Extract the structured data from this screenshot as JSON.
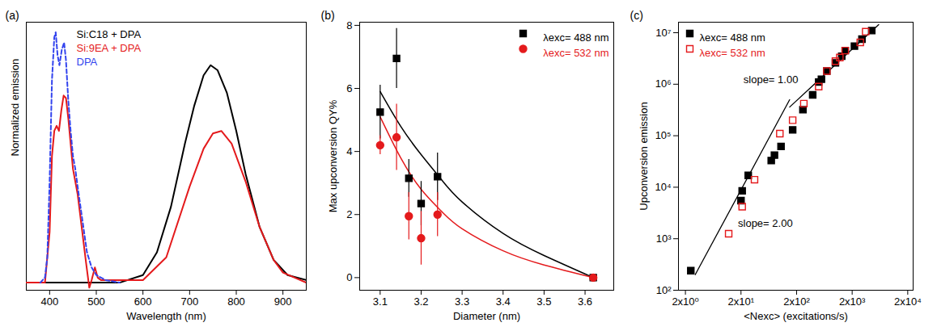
{
  "chart_data": [
    {
      "type": "line",
      "title": "(a)",
      "x_label": "Wavelength (nm)",
      "y_label": "Normalized emission",
      "xlim": [
        350,
        950
      ],
      "xticks": [
        400,
        500,
        600,
        700,
        800,
        900
      ],
      "ylim": [
        -0.03,
        1.03
      ],
      "yticks": [],
      "tick_labels": "x",
      "legend": "top-left",
      "series": [
        {
          "name": "Si:C18 + DPA",
          "color": "#000000",
          "line_style": "solid",
          "x": [
            350,
            400,
            450,
            500,
            550,
            600,
            630,
            660,
            690,
            710,
            730,
            745,
            760,
            780,
            800,
            820,
            850,
            880,
            910,
            950
          ],
          "values": [
            0,
            0,
            0,
            0,
            0,
            0.03,
            0.12,
            0.3,
            0.55,
            0.7,
            0.82,
            0.86,
            0.84,
            0.75,
            0.6,
            0.43,
            0.22,
            0.09,
            0.03,
            0.01
          ]
        },
        {
          "name": "Si:9EA + DPA",
          "color": "#e41a1c",
          "line_style": "solid",
          "x": [
            350,
            390,
            400,
            405,
            410,
            415,
            420,
            425,
            430,
            435,
            440,
            445,
            450,
            460,
            470,
            478,
            485,
            490,
            497,
            503,
            510,
            550,
            600,
            650,
            700,
            730,
            750,
            768,
            790,
            820,
            850,
            880,
            900,
            950
          ],
          "values": [
            0,
            0,
            0.2,
            0.5,
            0.6,
            0.62,
            0.6,
            0.68,
            0.74,
            0.73,
            0.65,
            0.55,
            0.45,
            0.35,
            0.2,
            0.08,
            -0.02,
            0.01,
            0.06,
            0.02,
            0.01,
            0.01,
            0.01,
            0.1,
            0.38,
            0.53,
            0.59,
            0.6,
            0.55,
            0.4,
            0.22,
            0.09,
            0.04,
            0
          ]
        },
        {
          "name": "DPA",
          "color": "#3344ee",
          "line_style": "dashed",
          "x": [
            380,
            390,
            395,
            400,
            405,
            410,
            413,
            417,
            421,
            426,
            431,
            435,
            440,
            445,
            450,
            455,
            460,
            470,
            480,
            490,
            500,
            520,
            550
          ],
          "values": [
            0,
            0.02,
            0.1,
            0.4,
            0.8,
            0.97,
            0.99,
            0.9,
            0.86,
            0.92,
            0.95,
            0.88,
            0.72,
            0.6,
            0.5,
            0.45,
            0.38,
            0.25,
            0.12,
            0.06,
            0.03,
            0.01,
            0
          ]
        }
      ]
    },
    {
      "type": "scatter",
      "title": "(b)",
      "x_label": "Diameter (nm)",
      "y_label": "Max upconversion QY%",
      "xlim": [
        3.05,
        3.67
      ],
      "xticks": [
        3.1,
        3.2,
        3.3,
        3.4,
        3.5,
        3.6
      ],
      "ylim": [
        -0.4,
        8.1
      ],
      "yticks": [
        0,
        2,
        4,
        6,
        8
      ],
      "legend": "top-right",
      "series": [
        {
          "name": "λexc= 488 nm",
          "color": "#000000",
          "marker": "square",
          "x": [
            3.1,
            3.14,
            3.17,
            3.2,
            3.24,
            3.62
          ],
          "values": [
            5.25,
            6.95,
            3.15,
            2.35,
            3.2,
            0
          ],
          "errors": [
            0.85,
            0.95,
            0.6,
            0.7,
            0.75,
            0
          ],
          "fit": {
            "x": [
              3.1,
              3.15,
              3.2,
              3.25,
              3.3,
              3.4,
              3.5,
              3.62
            ],
            "values": [
              5.9,
              4.8,
              3.9,
              3.1,
              2.4,
              1.4,
              0.7,
              0
            ]
          }
        },
        {
          "name": "λexc= 532 nm",
          "color": "#e41a1c",
          "marker": "circle",
          "x": [
            3.1,
            3.14,
            3.17,
            3.2,
            3.24,
            3.62
          ],
          "values": [
            4.2,
            4.45,
            1.95,
            1.25,
            2.0,
            0
          ],
          "errors": [
            0.3,
            1.05,
            0.75,
            0.85,
            0.7,
            0
          ],
          "fit": {
            "x": [
              3.1,
              3.15,
              3.2,
              3.25,
              3.3,
              3.4,
              3.5,
              3.62
            ],
            "values": [
              5.1,
              3.8,
              2.8,
              2.1,
              1.55,
              0.85,
              0.4,
              0
            ]
          }
        }
      ]
    },
    {
      "type": "scatter",
      "title": "(c)",
      "log": true,
      "x_label": "<Nexc> (excitations/s)",
      "y_label": "Upconversion emission",
      "xlim": [
        1.5,
        25000
      ],
      "xticks": [
        {
          "value": 2,
          "label": "2x10⁰"
        },
        {
          "value": 20,
          "label": "2x10¹"
        },
        {
          "value": 200,
          "label": "2x10²"
        },
        {
          "value": 2000,
          "label": "2x10³"
        },
        {
          "value": 20000,
          "label": "2x10⁴"
        }
      ],
      "ylim": [
        100,
        16000000
      ],
      "yticks": [
        {
          "value": 100,
          "label": "10²"
        },
        {
          "value": 1000,
          "label": "10³"
        },
        {
          "value": 10000,
          "label": "10⁴"
        },
        {
          "value": 100000,
          "label": "10⁵"
        },
        {
          "value": 1000000,
          "label": "10⁶"
        },
        {
          "value": 10000000,
          "label": "10⁷"
        }
      ],
      "legend": "top-left",
      "series": [
        {
          "name": "λexc= 488 nm",
          "color": "#000000",
          "marker": "square",
          "x": [
            2.5,
            20,
            21,
            27,
            70,
            80,
            105,
            170,
            260,
            390,
            500,
            560,
            700,
            1000,
            1300,
            1500,
            2200,
            3000,
            4500
          ],
          "values": [
            240,
            5500,
            8500,
            17000,
            33000,
            42000,
            62000,
            130000,
            320000,
            620000,
            1100000,
            1250000,
            1800000,
            2600000,
            3500000,
            4500000,
            5500000,
            7500000,
            11000000
          ]
        },
        {
          "name": "λexc= 532 nm",
          "color": "#e41a1c",
          "marker": "square-open",
          "x": [
            12,
            21,
            35,
            100,
            170,
            270,
            500,
            700,
            1000,
            1200,
            1500,
            2800,
            3500
          ],
          "values": [
            1250,
            4200,
            14000,
            110000,
            200000,
            420000,
            900000,
            1800000,
            2800000,
            3300000,
            4500000,
            6500000,
            10500000
          ]
        }
      ],
      "fits": [
        {
          "label": "slope= 2.00",
          "x": [
            3,
            150
          ],
          "values": [
            200,
            500000
          ]
        },
        {
          "label": "slope= 1.00",
          "x": [
            150,
            6000
          ],
          "values": [
            360000,
            14400000
          ]
        }
      ]
    }
  ]
}
